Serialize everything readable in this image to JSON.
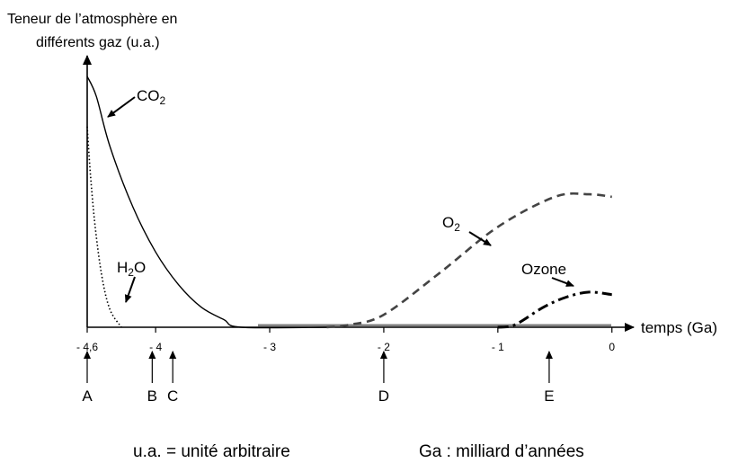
{
  "chart_data": {
    "type": "line",
    "y_label": [
      "Teneur de l’atmosphère en",
      "différents gaz (u.a.)"
    ],
    "x_label": "temps (Ga)",
    "x_ticks": [
      {
        "value": -4.6,
        "label": "- 4,6"
      },
      {
        "value": -4,
        "label": "- 4"
      },
      {
        "value": -3,
        "label": "- 3"
      },
      {
        "value": -2,
        "label": "- 2"
      },
      {
        "value": -1,
        "label": "- 1"
      },
      {
        "value": 0,
        "label": "0"
      }
    ],
    "xlim": [
      -4.6,
      0.1
    ],
    "ylim": [
      0,
      100
    ],
    "series": [
      {
        "name": "CO",
        "subscript": "2",
        "style": "solid",
        "points": [
          [
            -4.6,
            100
          ],
          [
            -4.52,
            92
          ],
          [
            -4.4,
            72
          ],
          [
            -4.2,
            48
          ],
          [
            -4.0,
            30
          ],
          [
            -3.8,
            17
          ],
          [
            -3.6,
            8
          ],
          [
            -3.4,
            3
          ],
          [
            -3.25,
            0
          ],
          [
            -2.5,
            0
          ]
        ]
      },
      {
        "name": "H",
        "subscript": "2",
        "name_suffix": "O",
        "style": "dotted",
        "points": [
          [
            -4.6,
            80
          ],
          [
            -4.57,
            60
          ],
          [
            -4.53,
            40
          ],
          [
            -4.47,
            20
          ],
          [
            -4.4,
            7
          ],
          [
            -4.3,
            0
          ]
        ]
      },
      {
        "name": "O",
        "subscript": "2",
        "style": "dashed",
        "points": [
          [
            -2.5,
            0
          ],
          [
            -2.3,
            1
          ],
          [
            -2.0,
            5
          ],
          [
            -1.5,
            22
          ],
          [
            -1.0,
            40
          ],
          [
            -0.5,
            52
          ],
          [
            -0.2,
            53
          ],
          [
            0,
            52
          ]
        ]
      },
      {
        "name": "Ozone",
        "style": "dashdot",
        "points": [
          [
            -1.0,
            0
          ],
          [
            -0.85,
            1
          ],
          [
            -0.6,
            8
          ],
          [
            -0.4,
            12
          ],
          [
            -0.2,
            14
          ],
          [
            0,
            13
          ]
        ]
      }
    ],
    "markers": [
      {
        "label": "A",
        "x": -4.6
      },
      {
        "label": "B",
        "x": -4.03
      },
      {
        "label": "C",
        "x": -3.85
      },
      {
        "label": "D",
        "x": -2.0
      },
      {
        "label": "E",
        "x": -0.55
      }
    ],
    "notes": [
      "u.a. = unité arbitraire",
      "Ga : milliard d’années"
    ]
  }
}
